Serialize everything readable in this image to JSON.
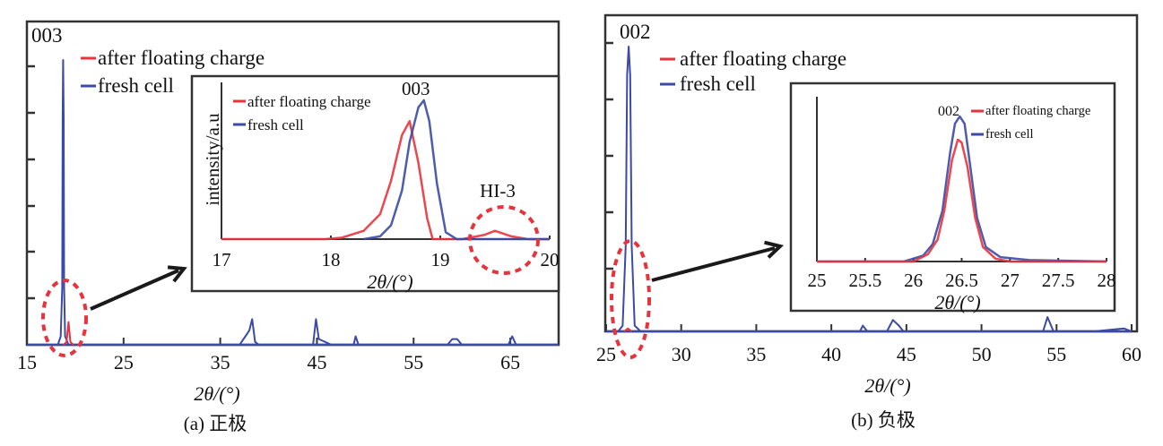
{
  "colors": {
    "after": "#e8333d",
    "fresh": "#3b4aa6",
    "frame": "#333333",
    "annot": "#e8333d",
    "arrow": "#1a1a1a"
  },
  "chart_data": [
    {
      "id": "a",
      "type": "line",
      "caption": "(a) 正极",
      "xlabel": "2θ/(°)",
      "ylabel": "",
      "xlim": [
        15,
        70
      ],
      "ylim": [
        0,
        1
      ],
      "xticks": [
        15,
        25,
        35,
        45,
        55,
        65
      ],
      "yticks_count": 6,
      "peak_label": "003",
      "legend": [
        {
          "name": "after floating charge",
          "color": "#e8333d"
        },
        {
          "name": "fresh cell",
          "color": "#3b4aa6"
        }
      ],
      "legend_position": "top-left",
      "series": [
        {
          "name": "fresh cell",
          "points": [
            [
              15,
              0
            ],
            [
              18.2,
              0
            ],
            [
              18.5,
              0.03
            ],
            [
              18.65,
              0.2
            ],
            [
              18.7,
              0.8
            ],
            [
              18.75,
              1.0
            ],
            [
              18.8,
              0.8
            ],
            [
              18.85,
              0.2
            ],
            [
              18.95,
              0.03
            ],
            [
              19.3,
              0
            ],
            [
              37,
              0
            ],
            [
              37.6,
              0.03
            ],
            [
              38.0,
              0.05
            ],
            [
              38.3,
              0.09
            ],
            [
              38.6,
              0.01
            ],
            [
              39,
              0
            ],
            [
              44.6,
              0
            ],
            [
              44.9,
              0.09
            ],
            [
              45.2,
              0.02
            ],
            [
              46.5,
              0
            ],
            [
              48.8,
              0
            ],
            [
              49.0,
              0.03
            ],
            [
              49.3,
              0
            ],
            [
              58.5,
              0
            ],
            [
              59.0,
              0.02
            ],
            [
              59.5,
              0.02
            ],
            [
              60,
              0
            ],
            [
              64.8,
              0
            ],
            [
              65.2,
              0.03
            ],
            [
              65.6,
              0
            ],
            [
              70,
              0
            ]
          ]
        },
        {
          "name": "after floating charge",
          "points": [
            [
              18.8,
              0
            ],
            [
              19.1,
              0.01
            ],
            [
              19.3,
              0.08
            ],
            [
              19.5,
              0.01
            ],
            [
              19.8,
              0
            ]
          ]
        }
      ],
      "annotations": [
        {
          "type": "dashed-ellipse",
          "target": "003 peak base",
          "x": 18.9
        },
        {
          "type": "arrow",
          "text": "zoom into inset"
        }
      ],
      "inset": {
        "xlabel": "2θ/(°)",
        "ylabel": "intensity/a.u",
        "xlim": [
          17,
          20
        ],
        "ylim": [
          0,
          1
        ],
        "xticks": [
          17,
          18,
          19,
          20
        ],
        "peak_label": "003",
        "region_label": "HI-3",
        "legend": [
          {
            "name": "after floating charge",
            "color": "#e8333d"
          },
          {
            "name": "fresh cell",
            "color": "#3b4aa6"
          }
        ],
        "legend_position": "top-left",
        "series": [
          {
            "name": "after floating charge",
            "points": [
              [
                17,
                0
              ],
              [
                17.95,
                0
              ],
              [
                18.1,
                0.01
              ],
              [
                18.3,
                0.06
              ],
              [
                18.45,
                0.18
              ],
              [
                18.55,
                0.42
              ],
              [
                18.65,
                0.75
              ],
              [
                18.72,
                0.85
              ],
              [
                18.8,
                0.55
              ],
              [
                18.88,
                0.15
              ],
              [
                18.93,
                0
              ],
              [
                19.2,
                0
              ],
              [
                19.4,
                0.03
              ],
              [
                19.5,
                0.06
              ],
              [
                19.65,
                0.02
              ],
              [
                19.8,
                0
              ],
              [
                20,
                0
              ]
            ]
          },
          {
            "name": "fresh cell",
            "points": [
              [
                18.3,
                0
              ],
              [
                18.45,
                0.02
              ],
              [
                18.55,
                0.1
              ],
              [
                18.65,
                0.35
              ],
              [
                18.72,
                0.7
              ],
              [
                18.8,
                0.95
              ],
              [
                18.85,
                1.0
              ],
              [
                18.9,
                0.85
              ],
              [
                18.97,
                0.4
              ],
              [
                19.05,
                0.05
              ],
              [
                19.15,
                0
              ],
              [
                20,
                0
              ]
            ]
          }
        ]
      }
    },
    {
      "id": "b",
      "type": "line",
      "caption": "(b) 负极",
      "xlabel": "2θ/(°)",
      "ylabel": "",
      "xlim": [
        25,
        60
      ],
      "ylim": [
        0,
        1
      ],
      "xticks": [
        25,
        30,
        35,
        40,
        45,
        50,
        55,
        60
      ],
      "yticks_count": 5,
      "peak_label": "002",
      "legend": [
        {
          "name": "after floating charge",
          "color": "#e8333d"
        },
        {
          "name": "fresh cell",
          "color": "#3b4aa6"
        }
      ],
      "legend_position": "top-left",
      "series": [
        {
          "name": "fresh cell",
          "points": [
            [
              25,
              0
            ],
            [
              25.8,
              0
            ],
            [
              26.1,
              0.02
            ],
            [
              26.3,
              0.3
            ],
            [
              26.4,
              0.9
            ],
            [
              26.5,
              1.0
            ],
            [
              26.6,
              0.9
            ],
            [
              26.7,
              0.3
            ],
            [
              26.9,
              0.02
            ],
            [
              27.3,
              0
            ],
            [
              41.9,
              0
            ],
            [
              42.1,
              0.02
            ],
            [
              42.4,
              0
            ],
            [
              43.7,
              0
            ],
            [
              44.1,
              0.04
            ],
            [
              44.5,
              0.02
            ],
            [
              44.8,
              0
            ],
            [
              54.1,
              0
            ],
            [
              54.4,
              0.05
            ],
            [
              54.8,
              0
            ],
            [
              57.5,
              0
            ],
            [
              59.5,
              0.01
            ],
            [
              60,
              0
            ]
          ]
        },
        {
          "name": "after floating charge",
          "points": [
            [
              26.2,
              0
            ],
            [
              26.45,
              0.01
            ],
            [
              26.7,
              0
            ]
          ]
        }
      ],
      "annotations": [
        {
          "type": "dashed-ellipse",
          "target": "002 peak base",
          "x": 26.5
        },
        {
          "type": "arrow",
          "text": "zoom into inset"
        }
      ],
      "inset": {
        "xlabel": "2θ/(°)",
        "ylabel": "",
        "xlim": [
          25,
          28
        ],
        "ylim": [
          0,
          1
        ],
        "xticks": [
          "25",
          "25.5",
          "26",
          "26.5",
          "27",
          "27.5",
          "28"
        ],
        "peak_label": "002",
        "legend": [
          {
            "name": "after floating charge",
            "color": "#e8333d"
          },
          {
            "name": "fresh cell",
            "color": "#3b4aa6"
          }
        ],
        "legend_position": "top-right",
        "series": [
          {
            "name": "fresh cell",
            "points": [
              [
                25,
                0
              ],
              [
                25.9,
                0
              ],
              [
                26.1,
                0.04
              ],
              [
                26.2,
                0.12
              ],
              [
                26.3,
                0.35
              ],
              [
                26.38,
                0.75
              ],
              [
                26.43,
                0.95
              ],
              [
                26.48,
                1.0
              ],
              [
                26.53,
                0.95
              ],
              [
                26.58,
                0.7
              ],
              [
                26.66,
                0.3
              ],
              [
                26.75,
                0.1
              ],
              [
                26.9,
                0.03
              ],
              [
                27.2,
                0.01
              ],
              [
                28,
                0
              ]
            ]
          },
          {
            "name": "after floating charge",
            "points": [
              [
                25,
                0
              ],
              [
                26.0,
                0
              ],
              [
                26.15,
                0.05
              ],
              [
                26.25,
                0.15
              ],
              [
                26.32,
                0.35
              ],
              [
                26.4,
                0.7
              ],
              [
                26.46,
                0.84
              ],
              [
                26.5,
                0.82
              ],
              [
                26.56,
                0.65
              ],
              [
                26.64,
                0.3
              ],
              [
                26.72,
                0.1
              ],
              [
                26.85,
                0.02
              ],
              [
                27.0,
                0
              ],
              [
                28,
                0
              ]
            ]
          }
        ]
      }
    }
  ]
}
